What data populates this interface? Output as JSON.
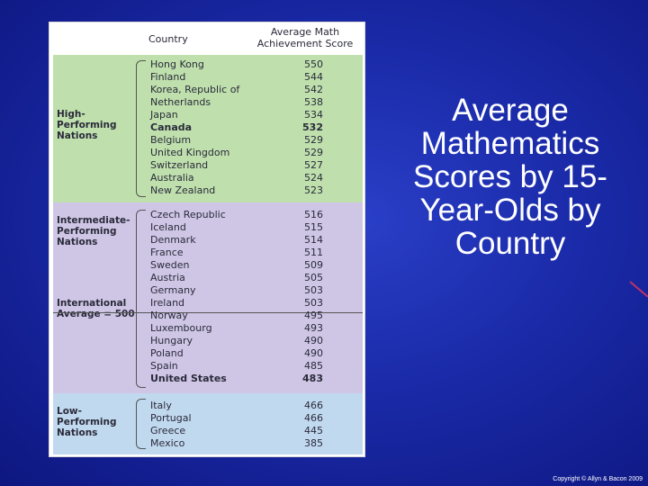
{
  "slide": {
    "title": "Average Mathematics Scores by 15-Year-Olds by Country",
    "copyright": "Copyright © Allyn & Bacon 2009"
  },
  "table": {
    "col_country": "Country",
    "col_score_line1": "Average Math",
    "col_score_line2": "Achievement Score",
    "groups": [
      {
        "label_line1": "High-",
        "label_line2": "Performing",
        "label_line3": "Nations"
      },
      {
        "label_line1": "Intermediate-",
        "label_line2": "Performing",
        "label_line3": "Nations"
      },
      {
        "label_line1": "Low-",
        "label_line2": "Performing",
        "label_line3": "Nations"
      }
    ],
    "average_label_line1": "International",
    "average_label_line2": "Average = 500",
    "rows": [
      {
        "country": "Hong Kong",
        "score": "550"
      },
      {
        "country": "Finland",
        "score": "544"
      },
      {
        "country": "Korea, Republic of",
        "score": "542"
      },
      {
        "country": "Netherlands",
        "score": "538"
      },
      {
        "country": "Japan",
        "score": "534"
      },
      {
        "country": "Canada",
        "score": "532"
      },
      {
        "country": "Belgium",
        "score": "529"
      },
      {
        "country": "United Kingdom",
        "score": "529"
      },
      {
        "country": "Switzerland",
        "score": "527"
      },
      {
        "country": "Australia",
        "score": "524"
      },
      {
        "country": "New Zealand",
        "score": "523"
      },
      {
        "country": "Czech Republic",
        "score": "516"
      },
      {
        "country": "Iceland",
        "score": "515"
      },
      {
        "country": "Denmark",
        "score": "514"
      },
      {
        "country": "France",
        "score": "511"
      },
      {
        "country": "Sweden",
        "score": "509"
      },
      {
        "country": "Austria",
        "score": "505"
      },
      {
        "country": "Germany",
        "score": "503"
      },
      {
        "country": "Ireland",
        "score": "503"
      },
      {
        "country": "Norway",
        "score": "495"
      },
      {
        "country": "Luxembourg",
        "score": "493"
      },
      {
        "country": "Hungary",
        "score": "490"
      },
      {
        "country": "Poland",
        "score": "490"
      },
      {
        "country": "Spain",
        "score": "485"
      },
      {
        "country": "United States",
        "score": "483"
      },
      {
        "country": "Italy",
        "score": "466"
      },
      {
        "country": "Portugal",
        "score": "466"
      },
      {
        "country": "Greece",
        "score": "445"
      },
      {
        "country": "Mexico",
        "score": "385"
      }
    ]
  }
}
